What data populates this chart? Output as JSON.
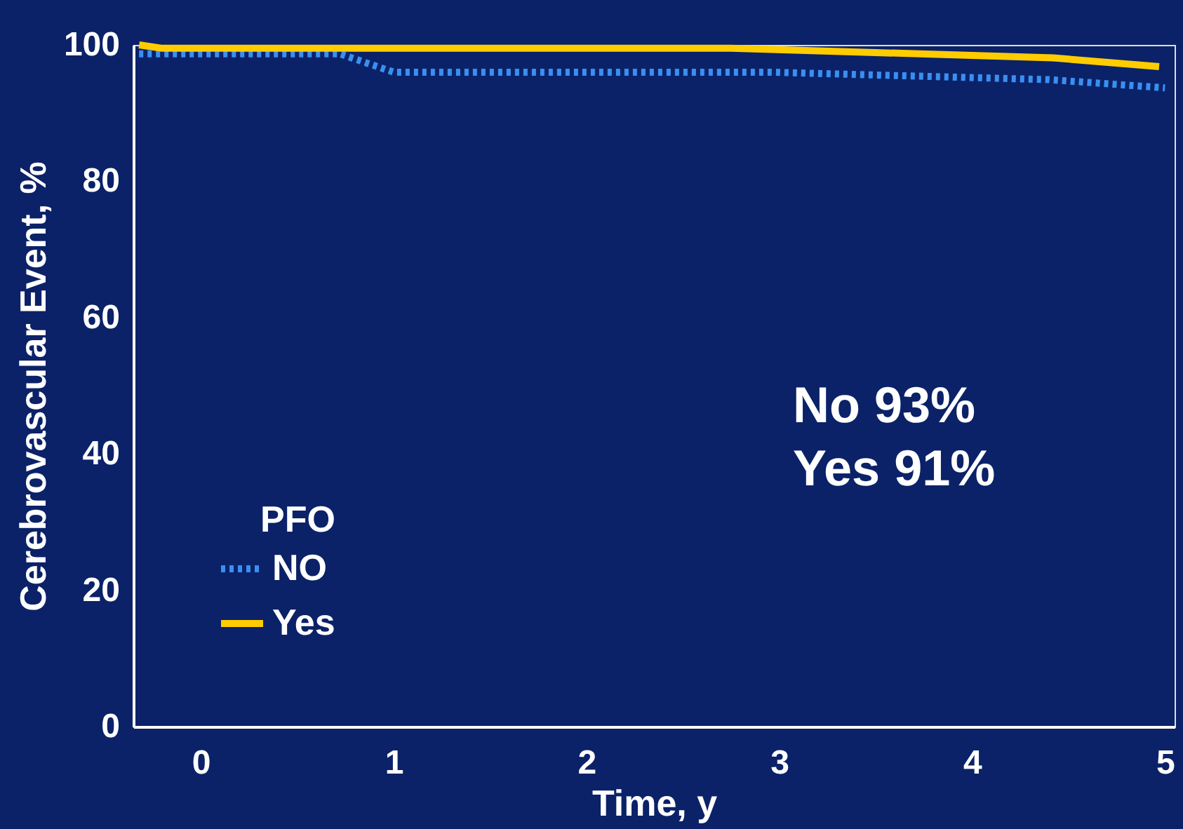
{
  "chart_data": {
    "type": "line",
    "xlabel": "Time, y",
    "ylabel": "Cerebrovascular Event, %",
    "legend_title": "PFO",
    "legend": "bottom left",
    "grid": false,
    "xlim": [
      -0.35,
      5.05
    ],
    "xticks": [
      0,
      1,
      2,
      3,
      4,
      5
    ],
    "ylim": [
      0,
      100
    ],
    "yticks": [
      0,
      20,
      40,
      60,
      80,
      100
    ],
    "annotations": [
      "No 93%",
      "Yes 91%"
    ],
    "series": [
      {
        "name": "NO",
        "color": "#3a8ff0",
        "line_style": "dotted",
        "x": [
          -0.32,
          0.72,
          1.0,
          2.95,
          4.4,
          5.0
        ],
        "values": [
          98.7,
          98.7,
          96,
          96,
          94.9,
          93.7
        ]
      },
      {
        "name": "Yes",
        "color": "#ffcc00",
        "line_style": "solid",
        "x": [
          -0.32,
          -0.2,
          2.75,
          4.42,
          4.97
        ],
        "values": [
          100,
          99.5,
          99.5,
          98.1,
          96.8
        ]
      }
    ]
  }
}
